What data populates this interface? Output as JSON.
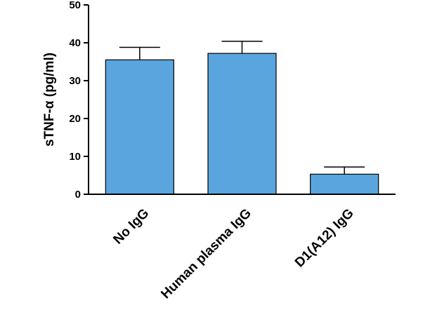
{
  "chart_data": {
    "type": "bar",
    "categories": [
      "No IgG",
      "Human plasma IgG",
      "D1(A12) IgG"
    ],
    "values": [
      35.5,
      37.2,
      5.3
    ],
    "error_upper": [
      38.8,
      40.4,
      7.2
    ],
    "ylabel": "sTNF-α (pg/ml)",
    "xlabel": "",
    "ylim": [
      0,
      50
    ],
    "yticks": [
      0,
      10,
      20,
      30,
      40,
      50
    ],
    "bar_color": "#5aa5dd",
    "grid": false
  }
}
